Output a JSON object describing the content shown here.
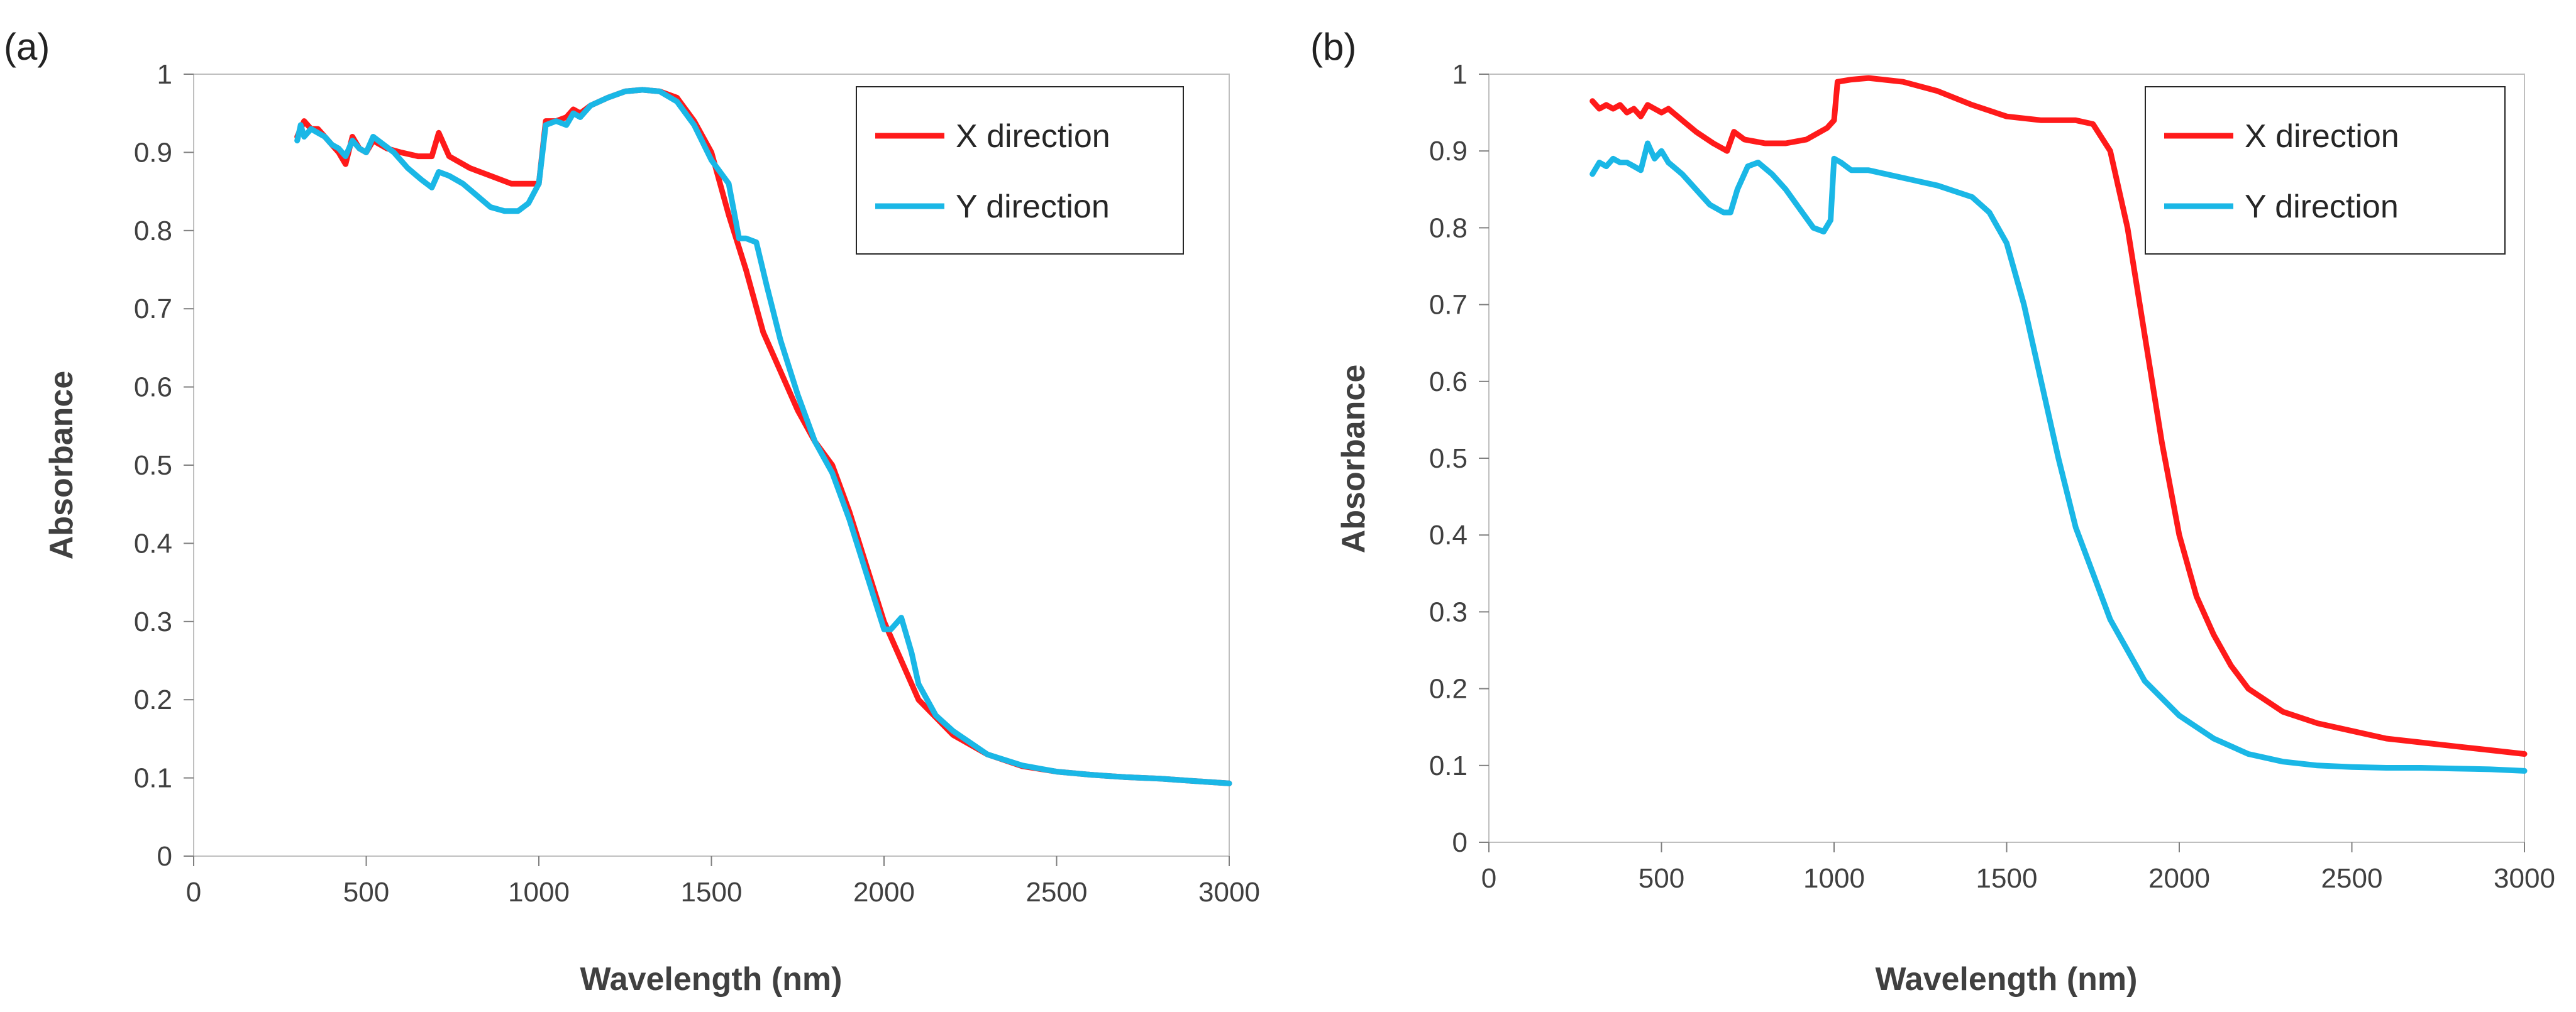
{
  "chart_data": [
    {
      "type": "line",
      "panel_label": "(a)",
      "xlabel": "Wavelength (nm)",
      "ylabel": "Absorbance",
      "xlim": [
        0,
        3000
      ],
      "ylim": [
        0,
        1
      ],
      "xticks": [
        0,
        500,
        1000,
        1500,
        2000,
        2500,
        3000
      ],
      "yticks": [
        0,
        0.1,
        0.2,
        0.3,
        0.4,
        0.5,
        0.6,
        0.7,
        0.8,
        0.9,
        1
      ],
      "yticklabels": [
        "0",
        "0.1",
        "0.2",
        "0.3",
        "0.4",
        "0.5",
        "0.6",
        "0.7",
        "0.8",
        "0.9",
        "1"
      ],
      "legend_position": "top-right",
      "series": [
        {
          "name": "X direction",
          "color": "#ff1a1a",
          "points": [
            [
              300,
              0.92
            ],
            [
              320,
              0.94
            ],
            [
              340,
              0.93
            ],
            [
              360,
              0.93
            ],
            [
              380,
              0.92
            ],
            [
              400,
              0.91
            ],
            [
              420,
              0.9
            ],
            [
              440,
              0.885
            ],
            [
              460,
              0.92
            ],
            [
              480,
              0.905
            ],
            [
              500,
              0.9
            ],
            [
              520,
              0.915
            ],
            [
              560,
              0.905
            ],
            [
              600,
              0.9
            ],
            [
              650,
              0.895
            ],
            [
              690,
              0.895
            ],
            [
              710,
              0.925
            ],
            [
              720,
              0.915
            ],
            [
              740,
              0.895
            ],
            [
              800,
              0.88
            ],
            [
              860,
              0.87
            ],
            [
              920,
              0.86
            ],
            [
              980,
              0.86
            ],
            [
              1000,
              0.86
            ],
            [
              1020,
              0.94
            ],
            [
              1050,
              0.94
            ],
            [
              1080,
              0.945
            ],
            [
              1100,
              0.955
            ],
            [
              1120,
              0.95
            ],
            [
              1150,
              0.96
            ],
            [
              1200,
              0.97
            ],
            [
              1250,
              0.978
            ],
            [
              1300,
              0.98
            ],
            [
              1350,
              0.978
            ],
            [
              1400,
              0.97
            ],
            [
              1450,
              0.94
            ],
            [
              1500,
              0.9
            ],
            [
              1550,
              0.82
            ],
            [
              1600,
              0.75
            ],
            [
              1650,
              0.67
            ],
            [
              1700,
              0.62
            ],
            [
              1750,
              0.57
            ],
            [
              1800,
              0.53
            ],
            [
              1850,
              0.5
            ],
            [
              1900,
              0.44
            ],
            [
              1950,
              0.37
            ],
            [
              2000,
              0.3
            ],
            [
              2050,
              0.25
            ],
            [
              2100,
              0.2
            ],
            [
              2200,
              0.155
            ],
            [
              2300,
              0.13
            ],
            [
              2400,
              0.115
            ],
            [
              2500,
              0.108
            ],
            [
              2600,
              0.104
            ],
            [
              2700,
              0.101
            ],
            [
              2800,
              0.099
            ],
            [
              2900,
              0.096
            ],
            [
              3000,
              0.093
            ]
          ]
        },
        {
          "name": "Y direction",
          "color": "#1ab7e6",
          "points": [
            [
              300,
              0.915
            ],
            [
              310,
              0.935
            ],
            [
              320,
              0.92
            ],
            [
              340,
              0.93
            ],
            [
              360,
              0.925
            ],
            [
              380,
              0.92
            ],
            [
              400,
              0.91
            ],
            [
              420,
              0.905
            ],
            [
              440,
              0.895
            ],
            [
              460,
              0.915
            ],
            [
              480,
              0.905
            ],
            [
              500,
              0.9
            ],
            [
              520,
              0.92
            ],
            [
              550,
              0.91
            ],
            [
              580,
              0.9
            ],
            [
              620,
              0.88
            ],
            [
              660,
              0.865
            ],
            [
              690,
              0.855
            ],
            [
              710,
              0.875
            ],
            [
              740,
              0.87
            ],
            [
              780,
              0.86
            ],
            [
              820,
              0.845
            ],
            [
              860,
              0.83
            ],
            [
              900,
              0.825
            ],
            [
              940,
              0.825
            ],
            [
              970,
              0.835
            ],
            [
              1000,
              0.86
            ],
            [
              1020,
              0.935
            ],
            [
              1050,
              0.94
            ],
            [
              1080,
              0.935
            ],
            [
              1100,
              0.95
            ],
            [
              1120,
              0.945
            ],
            [
              1150,
              0.96
            ],
            [
              1200,
              0.97
            ],
            [
              1250,
              0.978
            ],
            [
              1300,
              0.98
            ],
            [
              1350,
              0.978
            ],
            [
              1400,
              0.965
            ],
            [
              1450,
              0.935
            ],
            [
              1500,
              0.89
            ],
            [
              1550,
              0.86
            ],
            [
              1580,
              0.79
            ],
            [
              1600,
              0.79
            ],
            [
              1630,
              0.785
            ],
            [
              1660,
              0.73
            ],
            [
              1700,
              0.66
            ],
            [
              1750,
              0.59
            ],
            [
              1800,
              0.53
            ],
            [
              1850,
              0.49
            ],
            [
              1900,
              0.43
            ],
            [
              1950,
              0.36
            ],
            [
              2000,
              0.29
            ],
            [
              2020,
              0.29
            ],
            [
              2050,
              0.305
            ],
            [
              2080,
              0.26
            ],
            [
              2100,
              0.22
            ],
            [
              2150,
              0.18
            ],
            [
              2200,
              0.16
            ],
            [
              2300,
              0.13
            ],
            [
              2400,
              0.116
            ],
            [
              2500,
              0.108
            ],
            [
              2600,
              0.104
            ],
            [
              2700,
              0.101
            ],
            [
              2800,
              0.099
            ],
            [
              2900,
              0.096
            ],
            [
              3000,
              0.093
            ]
          ]
        }
      ]
    },
    {
      "type": "line",
      "panel_label": "(b)",
      "xlabel": "Wavelength (nm)",
      "ylabel": "Absorbance",
      "xlim": [
        0,
        3000
      ],
      "ylim": [
        0,
        1
      ],
      "xticks": [
        0,
        500,
        1000,
        1500,
        2000,
        2500,
        3000
      ],
      "yticks": [
        0,
        0.1,
        0.2,
        0.3,
        0.4,
        0.5,
        0.6,
        0.7,
        0.8,
        0.9,
        1
      ],
      "yticklabels": [
        "0",
        "0.1",
        "0.2",
        "0.3",
        "0.4",
        "0.5",
        "0.6",
        "0.7",
        "0.8",
        "0.9",
        "1"
      ],
      "legend_position": "top-right",
      "series": [
        {
          "name": "X direction",
          "color": "#ff1a1a",
          "points": [
            [
              300,
              0.965
            ],
            [
              320,
              0.955
            ],
            [
              340,
              0.96
            ],
            [
              360,
              0.955
            ],
            [
              380,
              0.96
            ],
            [
              400,
              0.95
            ],
            [
              420,
              0.955
            ],
            [
              440,
              0.945
            ],
            [
              460,
              0.96
            ],
            [
              480,
              0.955
            ],
            [
              500,
              0.95
            ],
            [
              520,
              0.955
            ],
            [
              560,
              0.94
            ],
            [
              600,
              0.925
            ],
            [
              650,
              0.91
            ],
            [
              690,
              0.9
            ],
            [
              710,
              0.925
            ],
            [
              740,
              0.915
            ],
            [
              800,
              0.91
            ],
            [
              860,
              0.91
            ],
            [
              920,
              0.915
            ],
            [
              980,
              0.93
            ],
            [
              1000,
              0.94
            ],
            [
              1010,
              0.99
            ],
            [
              1050,
              0.993
            ],
            [
              1100,
              0.995
            ],
            [
              1200,
              0.99
            ],
            [
              1300,
              0.978
            ],
            [
              1400,
              0.96
            ],
            [
              1500,
              0.945
            ],
            [
              1600,
              0.94
            ],
            [
              1700,
              0.94
            ],
            [
              1750,
              0.935
            ],
            [
              1800,
              0.9
            ],
            [
              1850,
              0.8
            ],
            [
              1900,
              0.66
            ],
            [
              1950,
              0.52
            ],
            [
              2000,
              0.4
            ],
            [
              2050,
              0.32
            ],
            [
              2100,
              0.27
            ],
            [
              2150,
              0.23
            ],
            [
              2200,
              0.2
            ],
            [
              2300,
              0.17
            ],
            [
              2400,
              0.155
            ],
            [
              2500,
              0.145
            ],
            [
              2600,
              0.135
            ],
            [
              2700,
              0.13
            ],
            [
              2800,
              0.125
            ],
            [
              2900,
              0.12
            ],
            [
              3000,
              0.115
            ]
          ]
        },
        {
          "name": "Y direction",
          "color": "#1ab7e6",
          "points": [
            [
              300,
              0.87
            ],
            [
              320,
              0.885
            ],
            [
              340,
              0.88
            ],
            [
              360,
              0.89
            ],
            [
              380,
              0.885
            ],
            [
              400,
              0.885
            ],
            [
              420,
              0.88
            ],
            [
              440,
              0.875
            ],
            [
              460,
              0.91
            ],
            [
              480,
              0.89
            ],
            [
              500,
              0.9
            ],
            [
              520,
              0.885
            ],
            [
              560,
              0.87
            ],
            [
              600,
              0.85
            ],
            [
              640,
              0.83
            ],
            [
              680,
              0.82
            ],
            [
              700,
              0.82
            ],
            [
              720,
              0.85
            ],
            [
              750,
              0.88
            ],
            [
              780,
              0.885
            ],
            [
              820,
              0.87
            ],
            [
              860,
              0.85
            ],
            [
              900,
              0.825
            ],
            [
              940,
              0.8
            ],
            [
              970,
              0.795
            ],
            [
              990,
              0.81
            ],
            [
              1000,
              0.89
            ],
            [
              1020,
              0.885
            ],
            [
              1050,
              0.875
            ],
            [
              1100,
              0.875
            ],
            [
              1200,
              0.865
            ],
            [
              1300,
              0.855
            ],
            [
              1400,
              0.84
            ],
            [
              1450,
              0.82
            ],
            [
              1500,
              0.78
            ],
            [
              1550,
              0.7
            ],
            [
              1600,
              0.6
            ],
            [
              1650,
              0.5
            ],
            [
              1700,
              0.41
            ],
            [
              1750,
              0.35
            ],
            [
              1800,
              0.29
            ],
            [
              1850,
              0.25
            ],
            [
              1900,
              0.21
            ],
            [
              2000,
              0.165
            ],
            [
              2100,
              0.135
            ],
            [
              2200,
              0.115
            ],
            [
              2300,
              0.105
            ],
            [
              2400,
              0.1
            ],
            [
              2500,
              0.098
            ],
            [
              2600,
              0.097
            ],
            [
              2700,
              0.097
            ],
            [
              2800,
              0.096
            ],
            [
              2900,
              0.095
            ],
            [
              3000,
              0.093
            ]
          ]
        }
      ]
    }
  ]
}
